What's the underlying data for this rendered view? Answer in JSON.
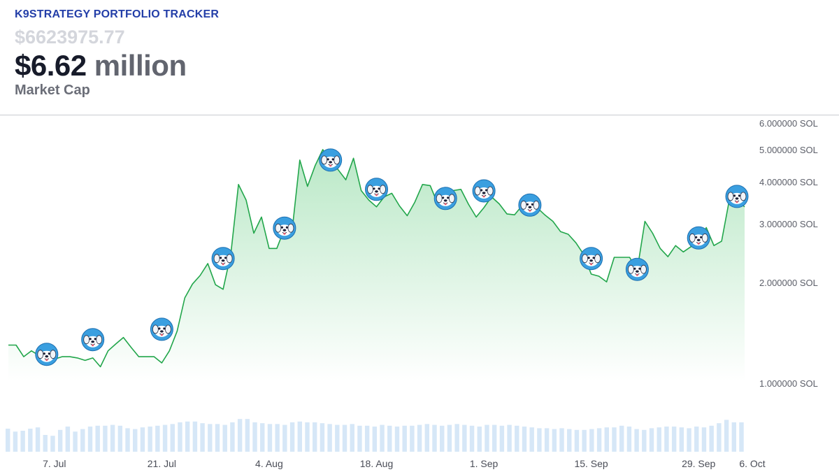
{
  "header": {
    "brand": "K9STRATEGY PORTFOLIO TRACKER",
    "exact_value": "$6623975.77",
    "value_number": "$6.62",
    "value_unit": "million",
    "caption": "Market Cap"
  },
  "colors": {
    "brand": "#233ea8",
    "line": "#22a64b",
    "area_top": "#b9e8c6",
    "volume": "#d6e7f7",
    "marker": "#3a9fe0"
  },
  "icons": {
    "marker": "dog-face-icon"
  },
  "chart_data": {
    "type": "area",
    "yscale": "log",
    "ylim": [
      1.0,
      6.0
    ],
    "yticks": [
      {
        "value": 6,
        "label": "6.000000 SOL"
      },
      {
        "value": 5,
        "label": "5.000000 SOL"
      },
      {
        "value": 4,
        "label": "4.000000 SOL"
      },
      {
        "value": 3,
        "label": "3.000000 SOL"
      },
      {
        "value": 2,
        "label": "2.000000 SOL"
      },
      {
        "value": 1,
        "label": "1.000000 SOL"
      }
    ],
    "xticks": [
      {
        "date": "2025-07-07",
        "label": "7. Jul"
      },
      {
        "date": "2025-07-21",
        "label": "21. Jul"
      },
      {
        "date": "2025-08-04",
        "label": "4. Aug"
      },
      {
        "date": "2025-08-18",
        "label": "18. Aug"
      },
      {
        "date": "2025-09-01",
        "label": "1. Sep"
      },
      {
        "date": "2025-09-15",
        "label": "15. Sep"
      },
      {
        "date": "2025-09-29",
        "label": "29. Sep"
      },
      {
        "date": "2025-10-06",
        "label": "6. Oct"
      }
    ],
    "series": [
      {
        "points": [
          [
            "2025-07-01",
            1.3
          ],
          [
            "2025-07-02",
            1.3
          ],
          [
            "2025-07-03",
            1.2
          ],
          [
            "2025-07-04",
            1.25
          ],
          [
            "2025-07-05",
            1.21
          ],
          [
            "2025-07-06",
            1.22
          ],
          [
            "2025-07-07",
            1.18
          ],
          [
            "2025-07-08",
            1.2
          ],
          [
            "2025-07-09",
            1.2
          ],
          [
            "2025-07-10",
            1.19
          ],
          [
            "2025-07-11",
            1.17
          ],
          [
            "2025-07-12",
            1.19
          ],
          [
            "2025-07-13",
            1.12
          ],
          [
            "2025-07-14",
            1.25
          ],
          [
            "2025-07-15",
            1.31
          ],
          [
            "2025-07-16",
            1.37
          ],
          [
            "2025-07-17",
            1.28
          ],
          [
            "2025-07-18",
            1.2
          ],
          [
            "2025-07-19",
            1.2
          ],
          [
            "2025-07-20",
            1.2
          ],
          [
            "2025-07-21",
            1.15
          ],
          [
            "2025-07-22",
            1.25
          ],
          [
            "2025-07-23",
            1.43
          ],
          [
            "2025-07-24",
            1.8
          ],
          [
            "2025-07-25",
            1.98
          ],
          [
            "2025-07-26",
            2.1
          ],
          [
            "2025-07-27",
            2.28
          ],
          [
            "2025-07-28",
            1.97
          ],
          [
            "2025-07-29",
            1.91
          ],
          [
            "2025-07-30",
            2.43
          ],
          [
            "2025-07-31",
            3.93
          ],
          [
            "2025-08-01",
            3.53
          ],
          [
            "2025-08-02",
            2.81
          ],
          [
            "2025-08-03",
            3.14
          ],
          [
            "2025-08-04",
            2.53
          ],
          [
            "2025-08-05",
            2.53
          ],
          [
            "2025-08-06",
            2.9
          ],
          [
            "2025-08-07",
            2.86
          ],
          [
            "2025-08-08",
            4.65
          ],
          [
            "2025-08-09",
            3.88
          ],
          [
            "2025-08-10",
            4.48
          ],
          [
            "2025-08-11",
            5.0
          ],
          [
            "2025-08-12",
            4.61
          ],
          [
            "2025-08-13",
            4.35
          ],
          [
            "2025-08-14",
            4.06
          ],
          [
            "2025-08-15",
            4.71
          ],
          [
            "2025-08-16",
            3.77
          ],
          [
            "2025-08-17",
            3.53
          ],
          [
            "2025-08-18",
            3.37
          ],
          [
            "2025-08-19",
            3.61
          ],
          [
            "2025-08-20",
            3.7
          ],
          [
            "2025-08-21",
            3.39
          ],
          [
            "2025-08-22",
            3.17
          ],
          [
            "2025-08-23",
            3.48
          ],
          [
            "2025-08-24",
            3.93
          ],
          [
            "2025-08-25",
            3.9
          ],
          [
            "2025-08-26",
            3.43
          ],
          [
            "2025-08-27",
            3.68
          ],
          [
            "2025-08-28",
            3.77
          ],
          [
            "2025-08-29",
            3.8
          ],
          [
            "2025-08-30",
            3.43
          ],
          [
            "2025-08-31",
            3.14
          ],
          [
            "2025-09-01",
            3.35
          ],
          [
            "2025-09-02",
            3.61
          ],
          [
            "2025-09-03",
            3.44
          ],
          [
            "2025-09-04",
            3.21
          ],
          [
            "2025-09-05",
            3.19
          ],
          [
            "2025-09-06",
            3.4
          ],
          [
            "2025-09-07",
            3.4
          ],
          [
            "2025-09-08",
            3.34
          ],
          [
            "2025-09-09",
            3.18
          ],
          [
            "2025-09-10",
            3.05
          ],
          [
            "2025-09-11",
            2.84
          ],
          [
            "2025-09-12",
            2.79
          ],
          [
            "2025-09-13",
            2.63
          ],
          [
            "2025-09-14",
            2.43
          ],
          [
            "2025-09-15",
            2.12
          ],
          [
            "2025-09-16",
            2.09
          ],
          [
            "2025-09-17",
            2.01
          ],
          [
            "2025-09-18",
            2.38
          ],
          [
            "2025-09-19",
            2.38
          ],
          [
            "2025-09-20",
            2.38
          ],
          [
            "2025-09-21",
            2.18
          ],
          [
            "2025-09-22",
            3.05
          ],
          [
            "2025-09-23",
            2.81
          ],
          [
            "2025-09-24",
            2.53
          ],
          [
            "2025-09-25",
            2.39
          ],
          [
            "2025-09-26",
            2.58
          ],
          [
            "2025-09-27",
            2.47
          ],
          [
            "2025-09-28",
            2.56
          ],
          [
            "2025-09-29",
            2.66
          ],
          [
            "2025-09-30",
            2.92
          ],
          [
            "2025-10-01",
            2.58
          ],
          [
            "2025-10-02",
            2.66
          ],
          [
            "2025-10-03",
            3.53
          ],
          [
            "2025-10-04",
            3.53
          ],
          [
            "2025-10-05",
            3.37
          ]
        ]
      }
    ],
    "markers": [
      [
        "2025-07-06",
        1.22
      ],
      [
        "2025-07-12",
        1.35
      ],
      [
        "2025-07-21",
        1.45
      ],
      [
        "2025-07-29",
        2.36
      ],
      [
        "2025-08-06",
        2.91
      ],
      [
        "2025-08-12",
        4.65
      ],
      [
        "2025-08-18",
        3.8
      ],
      [
        "2025-08-27",
        3.57
      ],
      [
        "2025-09-01",
        3.76
      ],
      [
        "2025-09-07",
        3.41
      ],
      [
        "2025-09-15",
        2.36
      ],
      [
        "2025-09-21",
        2.19
      ],
      [
        "2025-09-29",
        2.72
      ],
      [
        "2025-10-04",
        3.62
      ]
    ],
    "volume": [
      0.55,
      0.48,
      0.5,
      0.55,
      0.58,
      0.4,
      0.38,
      0.52,
      0.6,
      0.48,
      0.54,
      0.6,
      0.62,
      0.62,
      0.64,
      0.62,
      0.56,
      0.54,
      0.58,
      0.6,
      0.62,
      0.64,
      0.66,
      0.7,
      0.72,
      0.72,
      0.68,
      0.66,
      0.66,
      0.64,
      0.7,
      0.78,
      0.78,
      0.7,
      0.68,
      0.66,
      0.66,
      0.64,
      0.7,
      0.72,
      0.7,
      0.7,
      0.68,
      0.66,
      0.64,
      0.64,
      0.66,
      0.62,
      0.62,
      0.6,
      0.64,
      0.62,
      0.6,
      0.62,
      0.62,
      0.64,
      0.66,
      0.64,
      0.62,
      0.64,
      0.66,
      0.64,
      0.62,
      0.6,
      0.64,
      0.64,
      0.62,
      0.64,
      0.62,
      0.6,
      0.58,
      0.56,
      0.56,
      0.54,
      0.56,
      0.54,
      0.52,
      0.52,
      0.54,
      0.56,
      0.58,
      0.58,
      0.62,
      0.6,
      0.54,
      0.52,
      0.56,
      0.58,
      0.6,
      0.6,
      0.58,
      0.56,
      0.6,
      0.58,
      0.62,
      0.68,
      0.76,
      0.7,
      0.7
    ]
  }
}
